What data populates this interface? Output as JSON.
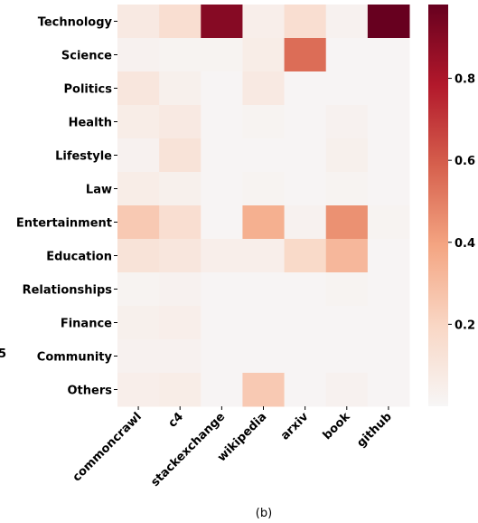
{
  "chart_data": {
    "type": "heatmap",
    "rows": [
      "Technology",
      "Science",
      "Politics",
      "Health",
      "Lifestyle",
      "Law",
      "Entertainment",
      "Education",
      "Relationships",
      "Finance",
      "Community",
      "Others"
    ],
    "columns": [
      "commoncrawl",
      "c4",
      "stackexchange",
      "wikipedia",
      "arxiv",
      "book",
      "github"
    ],
    "values": [
      [
        0.08,
        0.15,
        0.9,
        0.05,
        0.15,
        0.03,
        0.98
      ],
      [
        0.03,
        0.02,
        0.02,
        0.06,
        0.55,
        0.01,
        0.01
      ],
      [
        0.1,
        0.04,
        0.01,
        0.08,
        0.01,
        0.01,
        0.01
      ],
      [
        0.06,
        0.08,
        0.01,
        0.02,
        0.01,
        0.03,
        0.01
      ],
      [
        0.03,
        0.12,
        0.01,
        0.01,
        0.01,
        0.04,
        0.01
      ],
      [
        0.06,
        0.04,
        0.01,
        0.02,
        0.01,
        0.02,
        0.01
      ],
      [
        0.25,
        0.15,
        0.01,
        0.35,
        0.03,
        0.45,
        0.02
      ],
      [
        0.12,
        0.1,
        0.05,
        0.05,
        0.18,
        0.32,
        0.01
      ],
      [
        0.02,
        0.03,
        0.01,
        0.01,
        0.01,
        0.02,
        0.01
      ],
      [
        0.04,
        0.05,
        0.01,
        0.01,
        0.01,
        0.01,
        0.01
      ],
      [
        0.03,
        0.03,
        0.01,
        0.01,
        0.01,
        0.01,
        0.01
      ],
      [
        0.05,
        0.06,
        0.01,
        0.25,
        0.01,
        0.03,
        0.01
      ]
    ],
    "colorscale": [
      "#f7f6f6",
      "#f9d7c5",
      "#f4a582",
      "#d6604d",
      "#b2182b",
      "#67001f"
    ],
    "clim": [
      0,
      0.98
    ],
    "cticks": [
      0.2,
      0.4,
      0.6,
      0.8
    ],
    "caption": "(b)",
    "edge_fragment": "5"
  }
}
